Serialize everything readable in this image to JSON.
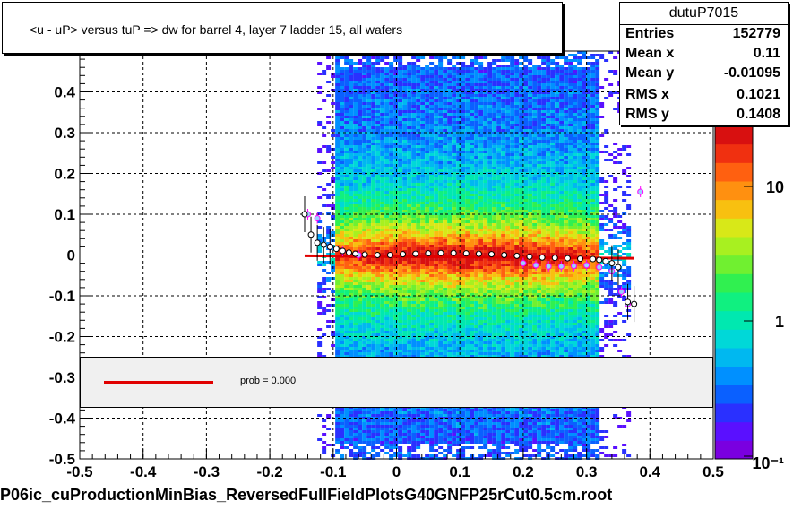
{
  "title": "<u - uP>       versus  tuP =>  dw for barrel 4, layer 7 ladder 15, all wafers",
  "file_label": "P06ic_cuProductionMinBias_ReversedFullFieldPlotsG40GNFP25rCut0.5cm.root",
  "stats": {
    "name": "dutuP7015",
    "rows": [
      {
        "key": "Entries",
        "value": "152779"
      },
      {
        "key": "Mean x",
        "value": "0.11"
      },
      {
        "key": "Mean y",
        "value": "-0.01095"
      },
      {
        "key": "RMS x",
        "value": "0.1021"
      },
      {
        "key": "RMS y",
        "value": "0.1408"
      }
    ]
  },
  "fit": {
    "label": "prob = 0.000",
    "line_color": "#e00000"
  },
  "chart_data": {
    "type": "heatmap",
    "title": "<u - uP>       versus  tuP =>  dw for barrel 4, layer 7 ladder 15, all wafers",
    "xlim": [
      -0.5,
      0.5
    ],
    "ylim": [
      -0.5,
      0.5
    ],
    "x_ticks": [
      "-0.5",
      "-0.4",
      "-0.3",
      "-0.2",
      "-0.1",
      "0",
      "0.1",
      "0.2",
      "0.3",
      "0.4",
      "0.5"
    ],
    "y_ticks": [
      "-0.5",
      "-0.4",
      "-0.3",
      "-0.2",
      "-0.1",
      "0",
      "0.1",
      "0.2",
      "0.3",
      "0.4"
    ],
    "z_scale": "log",
    "z_ticks": [
      "10⁻¹",
      "1",
      "10"
    ],
    "grid": true,
    "heatmap_x_range": [
      -0.1,
      0.32
    ],
    "profile_black": {
      "x": [
        -0.145,
        -0.135,
        -0.125,
        -0.115,
        -0.105,
        -0.095,
        -0.085,
        -0.075,
        -0.065,
        -0.05,
        -0.03,
        -0.01,
        0.01,
        0.03,
        0.05,
        0.07,
        0.09,
        0.11,
        0.13,
        0.15,
        0.17,
        0.19,
        0.21,
        0.23,
        0.25,
        0.27,
        0.29,
        0.31,
        0.32,
        0.33,
        0.34,
        0.35,
        0.365,
        0.375
      ],
      "y": [
        0.1,
        0.05,
        0.03,
        0.025,
        0.02,
        0.015,
        0.01,
        0.006,
        0.003,
        0.001,
        0.0,
        0.0,
        0.002,
        0.003,
        0.004,
        0.005,
        0.005,
        0.004,
        0.003,
        0.002,
        0.0,
        -0.002,
        -0.004,
        -0.006,
        -0.007,
        -0.008,
        -0.009,
        -0.01,
        -0.012,
        -0.015,
        -0.02,
        -0.03,
        -0.115,
        -0.12
      ]
    },
    "profile_pink": {
      "x": [
        -0.14,
        -0.125,
        -0.105,
        -0.085,
        -0.06,
        0.2,
        0.22,
        0.24,
        0.26,
        0.28,
        0.3,
        0.32,
        0.34,
        0.355,
        0.365,
        0.385
      ],
      "y": [
        0.1,
        0.09,
        0.02,
        0.01,
        0.0,
        -0.02,
        -0.025,
        -0.028,
        -0.028,
        -0.027,
        -0.025,
        -0.03,
        -0.04,
        -0.09,
        -0.12,
        0.155
      ]
    },
    "fit_line": {
      "x": [
        -0.145,
        0.375
      ],
      "y": [
        -0.002,
        -0.008
      ]
    }
  }
}
